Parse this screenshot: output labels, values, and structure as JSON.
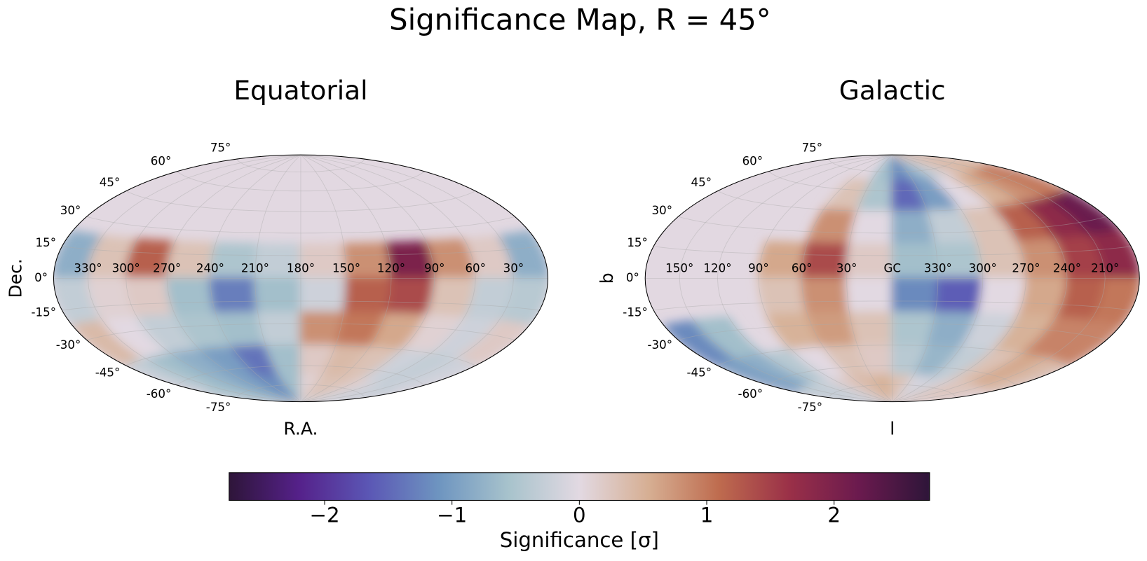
{
  "chart_data": {
    "type": "skymap",
    "title": "Significance Map, R = 45°",
    "maps": [
      {
        "title": "Equatorial",
        "xlabel": "R.A.",
        "ylabel": "Dec.",
        "central_lon": 180,
        "lon_ticks": [
          {
            "value": 330,
            "label": "330°"
          },
          {
            "value": 300,
            "label": "300°"
          },
          {
            "value": 270,
            "label": "270°"
          },
          {
            "value": 240,
            "label": "240°"
          },
          {
            "value": 210,
            "label": "210°"
          },
          {
            "value": 180,
            "label": "180°"
          },
          {
            "value": 150,
            "label": "150°"
          },
          {
            "value": 120,
            "label": "120°"
          },
          {
            "value": 90,
            "label": "90°"
          },
          {
            "value": 60,
            "label": "60°"
          },
          {
            "value": 30,
            "label": "30°"
          }
        ],
        "lat_ticks": [
          {
            "value": 75,
            "label": "75°"
          },
          {
            "value": 60,
            "label": "60°"
          },
          {
            "value": 45,
            "label": "45°"
          },
          {
            "value": 30,
            "label": "30°"
          },
          {
            "value": 15,
            "label": "15°"
          },
          {
            "value": 0,
            "label": "0°"
          },
          {
            "value": -15,
            "label": "-15°"
          },
          {
            "value": -30,
            "label": "-30°"
          },
          {
            "value": -45,
            "label": "-45°"
          },
          {
            "value": -60,
            "label": "-60°"
          },
          {
            "value": -75,
            "label": "-75°"
          }
        ],
        "lon_edges": [
          360,
          330,
          300,
          270,
          240,
          210,
          180,
          150,
          120,
          90,
          60,
          30,
          0
        ],
        "lat_edges": [
          90,
          67.5,
          45,
          22.5,
          0,
          -22.5,
          -45,
          -67.5,
          -90
        ],
        "values": [
          [
            null,
            null,
            null,
            null,
            null,
            null,
            null,
            null,
            null,
            null,
            null,
            null
          ],
          [
            null,
            null,
            null,
            null,
            null,
            null,
            null,
            null,
            null,
            null,
            null,
            null
          ],
          [
            null,
            null,
            null,
            null,
            null,
            null,
            null,
            null,
            null,
            null,
            null,
            null
          ],
          [
            -0.8,
            0.3,
            1.2,
            0.3,
            -0.5,
            -0.3,
            0.2,
            0.8,
            2.0,
            0.8,
            0.2,
            -0.8
          ],
          [
            -0.3,
            0.1,
            0.2,
            -0.6,
            -1.3,
            -0.6,
            -0.2,
            1.2,
            1.4,
            0.3,
            -0.3,
            -0.4
          ],
          [
            0.4,
            0,
            -0.3,
            -0.5,
            -0.6,
            -0.3,
            0.8,
            1.0,
            0.6,
            0.1,
            -0.2,
            0.2
          ],
          [
            -0.3,
            -0.6,
            -0.8,
            -1.0,
            -1.4,
            -0.6,
            0.2,
            0.4,
            0.3,
            -0.2,
            -0.3,
            -0.2
          ],
          [
            -0.5,
            -0.6,
            -0.8,
            -1.0,
            -1.2,
            -0.6,
            0.1,
            0.3,
            0.3,
            0.1,
            -0.2,
            -0.3
          ]
        ]
      },
      {
        "title": "Galactic",
        "xlabel": "l",
        "ylabel": "b",
        "central_lon": 0,
        "lon_ticks": [
          {
            "value": 150,
            "label": "150°"
          },
          {
            "value": 120,
            "label": "120°"
          },
          {
            "value": 90,
            "label": "90°"
          },
          {
            "value": 60,
            "label": "60°"
          },
          {
            "value": 30,
            "label": "30°"
          },
          {
            "value": 0,
            "label": "GC"
          },
          {
            "value": -30,
            "label": "330°"
          },
          {
            "value": -60,
            "label": "300°"
          },
          {
            "value": -90,
            "label": "270°"
          },
          {
            "value": -120,
            "label": "240°"
          },
          {
            "value": -150,
            "label": "210°"
          }
        ],
        "lat_ticks": [
          {
            "value": 75,
            "label": "75°"
          },
          {
            "value": 60,
            "label": "60°"
          },
          {
            "value": 45,
            "label": "45°"
          },
          {
            "value": 30,
            "label": "30°"
          },
          {
            "value": 15,
            "label": "15°"
          },
          {
            "value": 0,
            "label": "0°"
          },
          {
            "value": -15,
            "label": "-15°"
          },
          {
            "value": -30,
            "label": "-30°"
          },
          {
            "value": -45,
            "label": "-45°"
          },
          {
            "value": -60,
            "label": "-60°"
          },
          {
            "value": -75,
            "label": "-75°"
          }
        ],
        "lon_edges": [
          180,
          150,
          120,
          90,
          60,
          30,
          0,
          -30,
          -60,
          -90,
          -120,
          -150,
          -180
        ],
        "lat_edges": [
          90,
          67.5,
          45,
          22.5,
          0,
          -22.5,
          -45,
          -67.5,
          -90
        ],
        "values": [
          [
            null,
            null,
            null,
            null,
            null,
            -0.6,
            -1.2,
            -0.8,
            -0.3,
            0.2,
            0.4,
            0.5
          ],
          [
            null,
            null,
            null,
            null,
            0.3,
            -0.5,
            -1.5,
            -1.0,
            0.0,
            0.5,
            0.8,
            1.0
          ],
          [
            null,
            null,
            null,
            null,
            0.8,
            0.0,
            -0.8,
            -0.3,
            0.3,
            1.2,
            1.8,
            2.2
          ],
          [
            null,
            null,
            null,
            0.6,
            1.4,
            0.2,
            -0.6,
            -0.5,
            0.3,
            0.8,
            1.5,
            1.8
          ],
          [
            null,
            null,
            null,
            0.3,
            0.8,
            0.0,
            -1.2,
            -1.6,
            0.0,
            0.6,
            1.2,
            1.0
          ],
          [
            -1.2,
            -0.6,
            null,
            0.5,
            0.7,
            0.3,
            -0.5,
            -0.8,
            -0.2,
            0.5,
            0.9,
            0.9
          ],
          [
            -1.0,
            -0.8,
            -0.4,
            0.0,
            0.3,
            0.2,
            -0.4,
            -0.7,
            -0.3,
            0.3,
            0.6,
            0.4
          ],
          [
            -0.4,
            -0.3,
            -0.2,
            0.2,
            0.4,
            0.5,
            0.3,
            -0.1,
            -0.2,
            0.2,
            0.3,
            0.2
          ]
        ]
      }
    ],
    "colorbar": {
      "label": "Significance [σ]",
      "clim": [
        -2.75,
        2.75
      ],
      "ticks": [
        {
          "value": -2,
          "label": "−2"
        },
        {
          "value": -1,
          "label": "−1"
        },
        0,
        1,
        2
      ],
      "colors": [
        "#2e1539",
        "#55218a",
        "#5b57b5",
        "#6e95c0",
        "#a8c3cc",
        "#e2d9e2",
        "#d6ae92",
        "#be6b4e",
        "#9a3048",
        "#6a1a4e",
        "#2e1539"
      ]
    },
    "masked_color": "#e2d8e1"
  }
}
